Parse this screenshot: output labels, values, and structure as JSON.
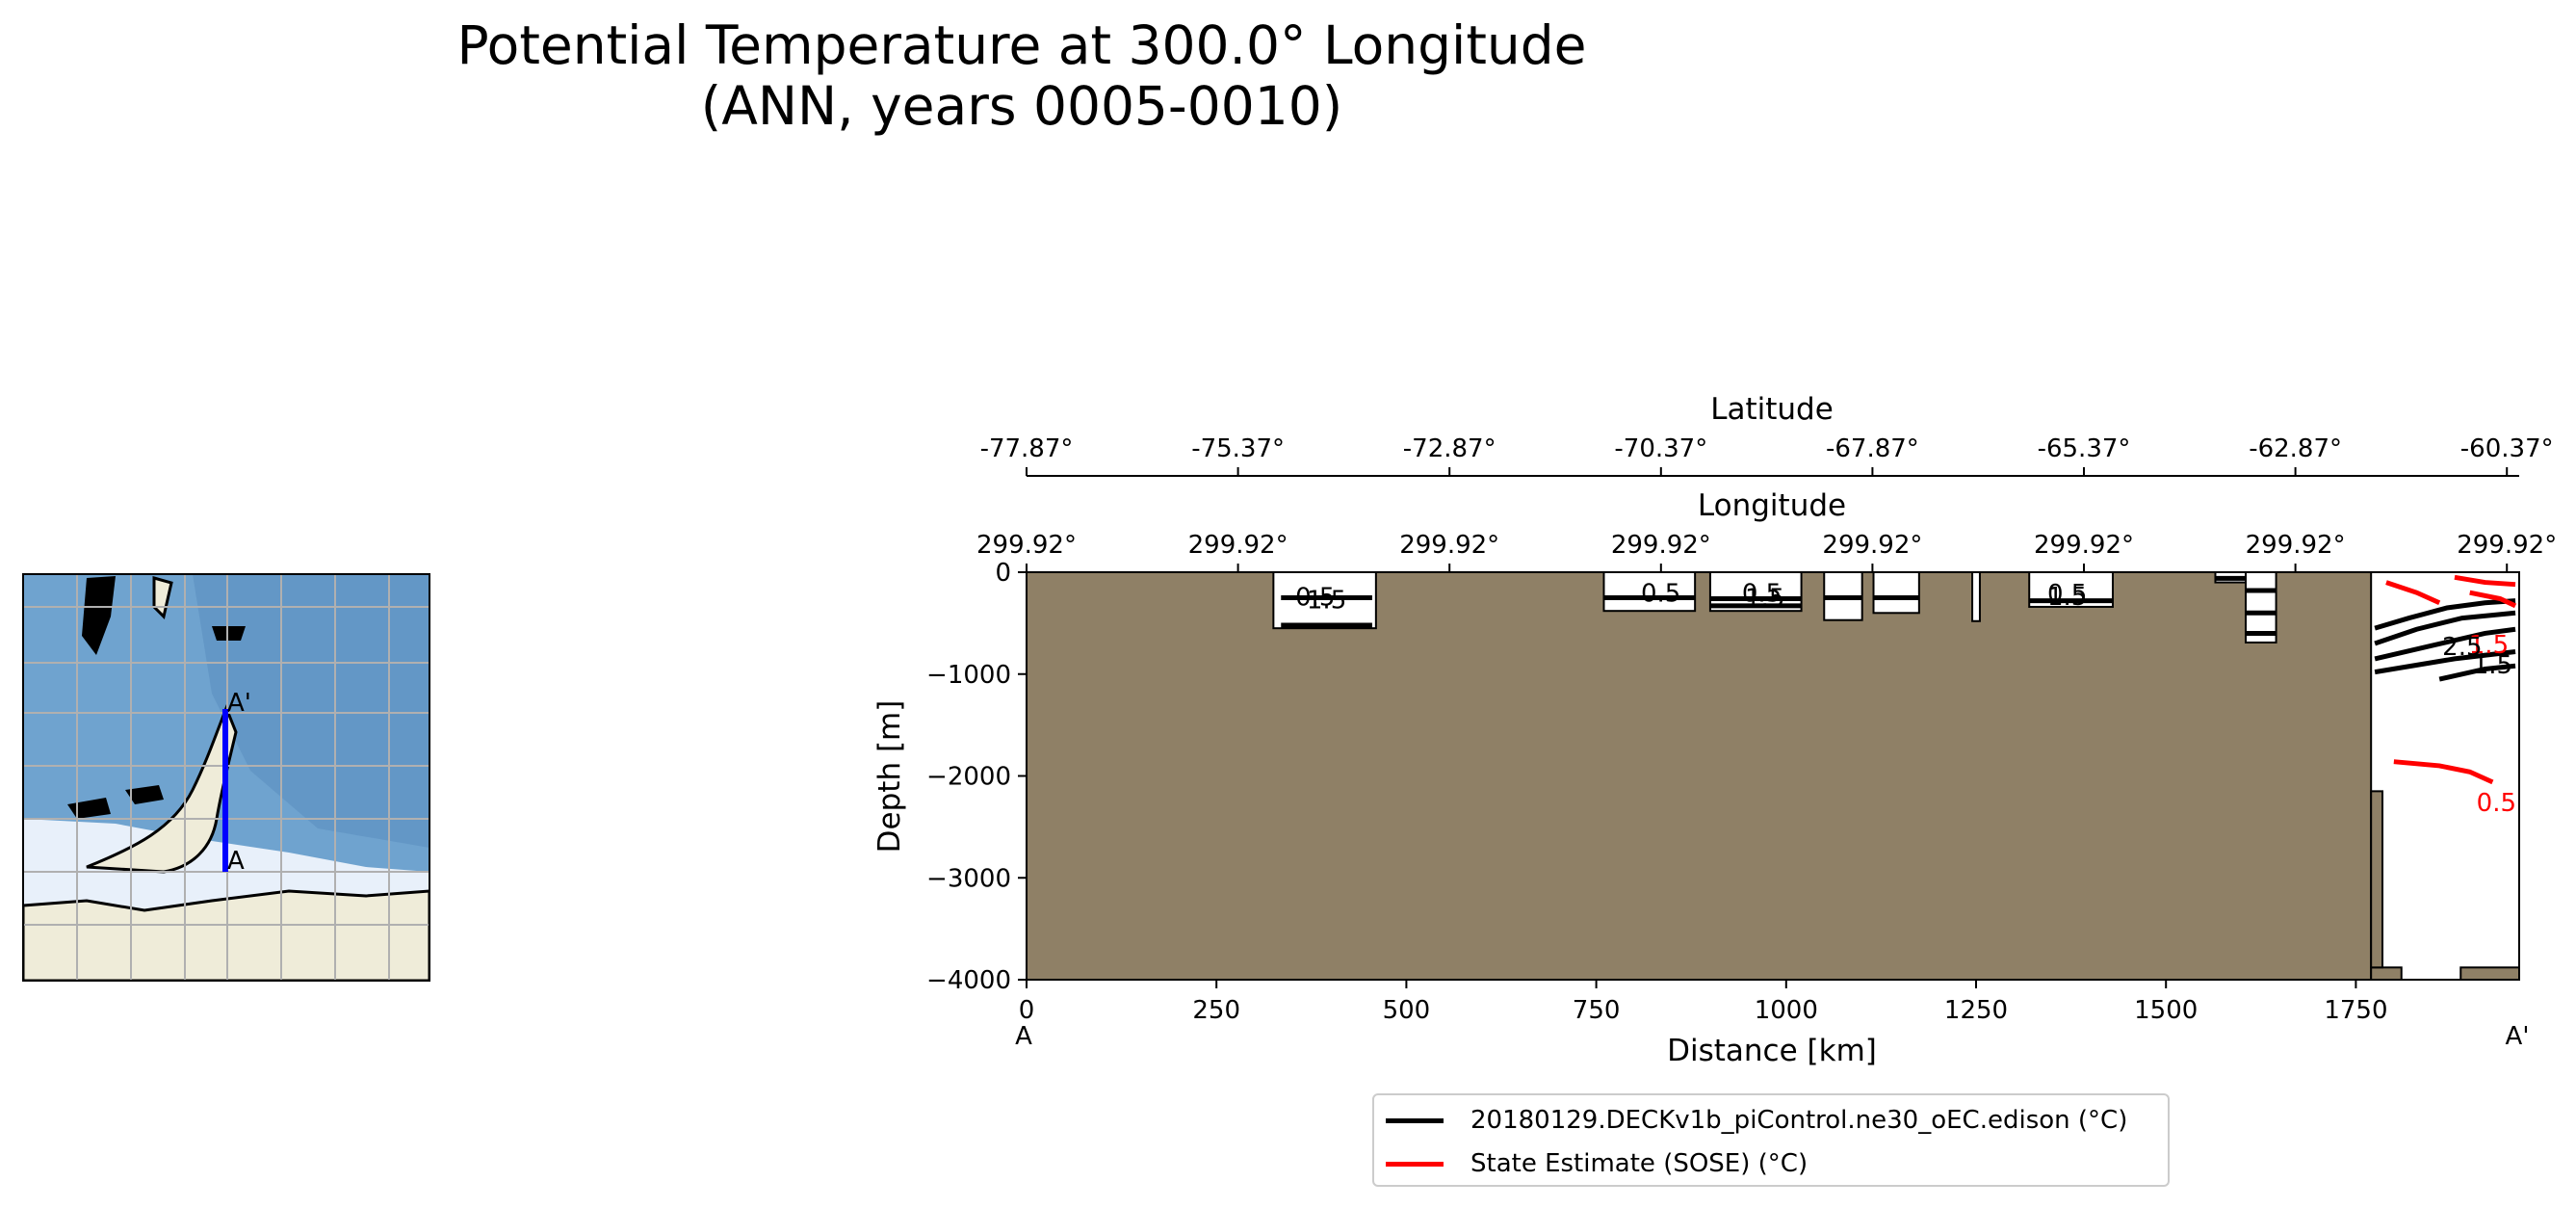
{
  "title_line1": "Potential Temperature at 300.0° Longitude",
  "title_line2": "(ANN, years 0005-0010)",
  "chart_data": {
    "type": "contour",
    "xlabel": "Distance [km]",
    "ylabel": "Depth [m]",
    "xlim": [
      0,
      1965
    ],
    "ylim": [
      -4000,
      0
    ],
    "xticks": [
      0,
      250,
      500,
      750,
      1000,
      1250,
      1500,
      1750
    ],
    "xtick_labels": [
      "0",
      "250",
      "500",
      "750",
      "1000",
      "1250",
      "1500",
      "1750"
    ],
    "yticks": [
      0,
      -1000,
      -2000,
      -3000,
      -4000
    ],
    "ytick_labels": [
      "0",
      "−1000",
      "−2000",
      "−3000",
      "−4000"
    ],
    "endpoint_start": "A",
    "endpoint_end": "A'",
    "lat_axis": {
      "label": "Latitude",
      "ticks": [
        0,
        278.4,
        556.8,
        835.2,
        1113.6,
        1392,
        1670.4,
        1948.8
      ],
      "tick_labels": [
        "-77.87°",
        "-75.37°",
        "-72.87°",
        "-70.37°",
        "-67.87°",
        "-65.37°",
        "-62.87°",
        "-60.37°"
      ]
    },
    "lon_axis": {
      "label": "Longitude",
      "ticks": [
        0,
        278.4,
        556.8,
        835.2,
        1113.6,
        1392,
        1670.4,
        1948.8
      ],
      "tick_labels": [
        "299.92°",
        "299.92°",
        "299.92°",
        "299.92°",
        "299.92°",
        "299.92°",
        "299.92°",
        "299.92°"
      ]
    },
    "bathymetry_color": "#8f8066",
    "ocean_windows": [
      {
        "x0": 325,
        "x1": 460,
        "d_top": 0,
        "d_bot": 550
      },
      {
        "x0": 760,
        "x1": 880,
        "d_top": 0,
        "d_bot": 380
      },
      {
        "x0": 900,
        "x1": 1020,
        "d_top": 0,
        "d_bot": 380
      },
      {
        "x0": 1050,
        "x1": 1100,
        "d_top": 0,
        "d_bot": 470
      },
      {
        "x0": 1115,
        "x1": 1175,
        "d_top": 0,
        "d_bot": 400
      },
      {
        "x0": 1245,
        "x1": 1255,
        "d_top": 0,
        "d_bot": 480
      },
      {
        "x0": 1320,
        "x1": 1430,
        "d_top": 0,
        "d_bot": 340
      },
      {
        "x0": 1565,
        "x1": 1605,
        "d_top": 0,
        "d_bot": 100
      },
      {
        "x0": 1605,
        "x1": 1645,
        "d_top": 0,
        "d_bot": 690
      },
      {
        "x0": 1770,
        "x1": 1965,
        "d_top": 0,
        "d_bot": 4000
      }
    ],
    "contour_labels": [
      {
        "text": "0.5",
        "x": 380,
        "d": 230,
        "color": "#000000"
      },
      {
        "text": "1.5",
        "x": 395,
        "d": 260,
        "color": "#000000"
      },
      {
        "text": "0.5",
        "x": 835,
        "d": 195,
        "color": "#000000"
      },
      {
        "text": "0.5",
        "x": 968,
        "d": 195,
        "color": "#000000"
      },
      {
        "text": "1.5",
        "x": 972,
        "d": 240,
        "color": "#000000"
      },
      {
        "text": "0.5",
        "x": 1370,
        "d": 200,
        "color": "#000000"
      },
      {
        "text": "1.5",
        "x": 1370,
        "d": 225,
        "color": "#000000"
      },
      {
        "text": "0.5",
        "x": 1935,
        "d": 2250,
        "color": "#ff0000"
      },
      {
        "text": "1.5",
        "x": 1930,
        "d": 900,
        "color": "#000000"
      },
      {
        "text": "1.5",
        "x": 1925,
        "d": 700,
        "color": "#ff0000"
      },
      {
        "text": "2.5",
        "x": 1890,
        "d": 720,
        "color": "#000000"
      }
    ],
    "series": [
      {
        "name": "20180129.DECKv1b_piControl.ne30_oEC.edison (°C)",
        "color": "#000000"
      },
      {
        "name": "State Estimate (SOSE) (°C)",
        "color": "#ff0000"
      }
    ],
    "legend_position": "below"
  },
  "map": {
    "label_start": "A",
    "label_end": "A'",
    "transect_color": "#0000ff",
    "land_color": "#efecd9",
    "ocean_color": "#6fa3cf",
    "ice_color": "#e8f0fa"
  }
}
